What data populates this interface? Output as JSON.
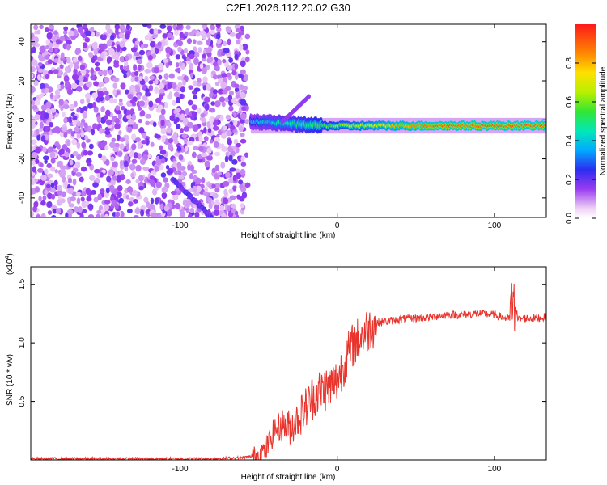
{
  "title": "C2E1.2026.112.20.02.G30",
  "chart_data": [
    {
      "type": "heatmap",
      "name": "spectrogram",
      "xlabel": "Height of straight line (km)",
      "ylabel": "Frequency (Hz)",
      "xlim": [
        -195,
        133
      ],
      "ylim": [
        -50,
        49
      ],
      "xticks": [
        -100,
        0,
        100
      ],
      "yticks": [
        -40,
        -20,
        0,
        20,
        40
      ],
      "regions": [
        {
          "kind": "noise",
          "x_range": [
            -195,
            -57
          ],
          "y_range": [
            -50,
            49
          ],
          "amplitude": 0.1
        },
        {
          "kind": "track",
          "x_range": [
            -55,
            133
          ],
          "center_freq": -3,
          "amplitude_start": 0.35,
          "amplitude_end": 0.9
        },
        {
          "kind": "chirp",
          "x_from": -105,
          "y_from": -30,
          "x_to": -80,
          "y_to": -50,
          "amplitude": 0.15
        }
      ],
      "colorbar": {
        "label": "Normalized spectral amplitude",
        "ticks": [
          0.0,
          0.2,
          0.4,
          0.6,
          0.8
        ],
        "range": [
          0,
          1
        ]
      }
    },
    {
      "type": "line",
      "name": "snr",
      "xlabel": "Height of straight line (km)",
      "ylabel": "SNR (10 * v/v)",
      "y_scale_note": "(x10",
      "y_scale_exp": "4",
      "xlim": [
        -195,
        133
      ],
      "ylim": [
        0,
        1.65
      ],
      "xticks": [
        -100,
        0,
        100
      ],
      "yticks": [
        0.5,
        1.0,
        1.5
      ],
      "series": [
        {
          "name": "SNR",
          "color": "#e8342c",
          "x": [
            -195,
            -160,
            -120,
            -80,
            -60,
            -50,
            -45,
            -40,
            -35,
            -30,
            -25,
            -20,
            -15,
            -10,
            -5,
            0,
            5,
            10,
            15,
            20,
            25,
            30,
            40,
            50,
            60,
            70,
            80,
            90,
            100,
            105,
            110,
            112,
            115,
            120,
            125,
            133
          ],
          "values": [
            0.01,
            0.01,
            0.01,
            0.01,
            0.02,
            0.04,
            0.1,
            0.25,
            0.3,
            0.28,
            0.35,
            0.45,
            0.55,
            0.6,
            0.62,
            0.68,
            0.85,
            0.98,
            1.05,
            1.12,
            1.17,
            1.18,
            1.2,
            1.21,
            1.22,
            1.24,
            1.24,
            1.25,
            1.24,
            1.22,
            1.2,
            1.4,
            1.2,
            1.21,
            1.21,
            1.22
          ]
        }
      ]
    }
  ]
}
